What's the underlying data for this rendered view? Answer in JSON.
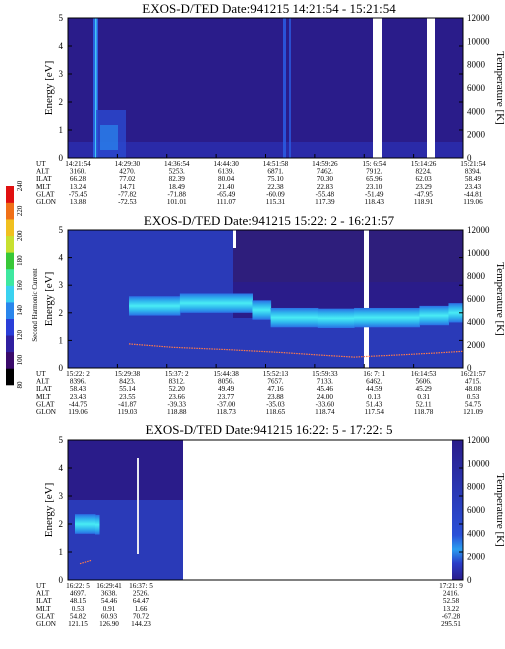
{
  "panels": [
    {
      "title": "EXOS-D/TED   Date:941215  14:21:54 - 15:21:54",
      "ylabel": "Energy [eV]",
      "y2label": "Temperature [K]",
      "yticks": [
        "0",
        "1",
        "2",
        "3",
        "4",
        "5"
      ],
      "y2ticks": [
        "0",
        "2000",
        "4000",
        "6000",
        "8000",
        "10000",
        "12000"
      ],
      "table_rows": [
        "UT",
        "ALT",
        "ILAT",
        "MLT",
        "GLAT",
        "GLON"
      ],
      "table_cols": [
        [
          "14:21:54",
          "3160.",
          "66.28",
          "13.24",
          "-75.45",
          "13.88"
        ],
        [
          "14:29:30",
          "4270.",
          "77.02",
          "14.71",
          "-77.82",
          "-72.53"
        ],
        [
          "14:36:54",
          "5253.",
          "82.39",
          "18.49",
          "-71.88",
          "101.01"
        ],
        [
          "14:44:30",
          "6139.",
          "80.04",
          "21.40",
          "-65.49",
          "111.07"
        ],
        [
          "14:51:58",
          "6871.",
          "75.10",
          "22.38",
          "-60.09",
          "115.31"
        ],
        [
          "14:59:26",
          "7462.",
          "70.30",
          "22.83",
          "-55.48",
          "117.39"
        ],
        [
          "15: 6:54",
          "7912.",
          "65.96",
          "23.10",
          "-51.49",
          "118.43"
        ],
        [
          "15:14:26",
          "8224.",
          "62.03",
          "23.29",
          "-47.95",
          "118.91"
        ],
        [
          "15:21:54",
          "8394.",
          "58.49",
          "23.43",
          "-44.81",
          "119.06"
        ]
      ]
    },
    {
      "title": "EXOS-D/TED   Date:941215  15:22: 2 - 16:21:57",
      "ylabel": "Energy [eV]",
      "y2label": "Temperature [K]",
      "yticks": [
        "0",
        "1",
        "2",
        "3",
        "4",
        "5"
      ],
      "y2ticks": [
        "0",
        "2000",
        "4000",
        "6000",
        "8000",
        "10000",
        "12000"
      ],
      "table_rows": [
        "UT",
        "ALT",
        "ILAT",
        "MLT",
        "GLAT",
        "GLON"
      ],
      "table_cols": [
        [
          "15:22: 2",
          "8396.",
          "58.43",
          "23.43",
          "-44.75",
          "119.06"
        ],
        [
          "15:29:38",
          "8423.",
          "55.14",
          "23.55",
          "-41.87",
          "119.03"
        ],
        [
          "15:37: 2",
          "8312.",
          "52.20",
          "23.66",
          "-39.33",
          "118.88"
        ],
        [
          "15:44:38",
          "8056.",
          "49.49",
          "23.77",
          "-37.00",
          "118.73"
        ],
        [
          "15:52:13",
          "7657.",
          "47.16",
          "23.88",
          "-35.03",
          "118.65"
        ],
        [
          "15:59:33",
          "7133.",
          "45.46",
          "24.00",
          "-33.60",
          "118.74"
        ],
        [
          "16: 7: 1",
          "6462.",
          "44.59",
          "0.13",
          "51.43",
          "117.54"
        ],
        [
          "16:14:53",
          "5606.",
          "45.29",
          "0.31",
          "52.11",
          "118.78"
        ],
        [
          "16:21:57",
          "4715.",
          "48.08",
          "0.53",
          "54.75",
          "121.09"
        ]
      ]
    },
    {
      "title": "EXOS-D/TED   Date:941215  16:22: 5 - 17:22: 5",
      "ylabel": "Energy [eV]",
      "y2label": "Temperature [K]",
      "yticks": [
        "0",
        "1",
        "2",
        "3",
        "4",
        "5"
      ],
      "y2ticks": [
        "0",
        "2000",
        "4000",
        "6000",
        "8000",
        "10000",
        "12000"
      ],
      "table_rows": [
        "UT",
        "ALT",
        "ILAT",
        "MLT",
        "GLAT",
        "GLON"
      ],
      "table_cols": [
        [
          "16:22: 5",
          "4697.",
          "48.15",
          "0.53",
          "54.82",
          "121.15"
        ],
        [
          "16:29:41",
          "3638.",
          "54.46",
          "0.91",
          "60.93",
          "126.90"
        ],
        [
          "16:37: 5",
          "2526.",
          "64.47",
          "1.66",
          "70.72",
          "144.23"
        ],
        [
          "17:21: 9",
          "2416.",
          "52.58",
          "13.22",
          "-67.28",
          "295.51"
        ]
      ]
    }
  ],
  "colorbar": {
    "label": "Second Harmonic Current",
    "ticks": [
      "80",
      "100",
      "120",
      "140",
      "160",
      "180",
      "200",
      "220",
      "240"
    ]
  },
  "colors": {
    "background": "#2a1c8a",
    "band_core": "#38dcf0",
    "band_edge": "#2a86ec",
    "temperature": "#ff7a4a",
    "axis": "#000000"
  },
  "chart_data": [
    {
      "type": "heatmap",
      "title": "EXOS-D/TED   Date:941215  14:21:54 - 15:21:54",
      "xlabel": "UT",
      "ylabel": "Energy [eV]",
      "y2label": "Temperature [K]",
      "x": [
        "14:21:54",
        "14:29:30",
        "14:36:54",
        "14:44:30",
        "14:51:58",
        "14:59:26",
        "15: 6:54",
        "15:14:26",
        "15:21:54"
      ],
      "ylim": [
        0,
        5
      ],
      "y2lim": [
        0,
        12000
      ],
      "data_gaps": [
        [
          "15: 0:55",
          "15: 2:50"
        ],
        [
          "15:15:30",
          "15:17:40"
        ]
      ],
      "spikes_ut": [
        "14:23:35",
        "14:53:10"
      ]
    },
    {
      "type": "heatmap",
      "title": "EXOS-D/TED   Date:941215  15:22: 2 - 16:21:57",
      "xlabel": "UT",
      "ylabel": "Energy [eV]",
      "y2label": "Temperature [K]",
      "x": [
        "15:22: 2",
        "15:29:38",
        "15:37: 2",
        "15:44:38",
        "15:52:13",
        "15:59:33",
        "16: 7: 1",
        "16:14:53",
        "16:21:57"
      ],
      "ylim": [
        0,
        5
      ],
      "y2lim": [
        0,
        12000
      ],
      "band_energy_eV": [
        [
          0.08,
          2.15
        ],
        [
          0.22,
          2.35
        ],
        [
          0.42,
          2.35
        ],
        [
          0.47,
          1.85
        ],
        [
          0.6,
          1.8
        ],
        [
          0.7,
          1.8
        ],
        [
          0.88,
          1.85
        ],
        [
          0.96,
          1.95
        ],
        [
          1.0,
          2.05
        ]
      ],
      "temperature_K": [
        [
          0.08,
          2100
        ],
        [
          0.2,
          1800
        ],
        [
          0.35,
          1600
        ],
        [
          0.5,
          1350
        ],
        [
          0.62,
          1100
        ],
        [
          0.7,
          950
        ],
        [
          0.83,
          1150
        ],
        [
          0.92,
          1300
        ],
        [
          1.0,
          1450
        ]
      ],
      "data_gaps": [
        [
          "16: 6:20",
          "16: 8:05"
        ]
      ]
    },
    {
      "type": "heatmap",
      "title": "EXOS-D/TED   Date:941215  16:22: 5 - 17:22: 5",
      "xlabel": "UT",
      "ylabel": "Energy [eV]",
      "y2label": "Temperature [K]",
      "x": [
        "16:22: 5",
        "16:29:41",
        "16:37: 5",
        "17:21: 9"
      ],
      "ylim": [
        0,
        5
      ],
      "y2lim": [
        0,
        12000
      ],
      "band_energy_eV": [
        [
          0.0,
          2.0
        ],
        [
          0.2,
          2.0
        ],
        [
          0.24,
          1.95
        ]
      ],
      "temperature_K": [
        [
          0.0,
          1400
        ],
        [
          0.12,
          1550
        ],
        [
          0.24,
          1700
        ]
      ]
    }
  ]
}
